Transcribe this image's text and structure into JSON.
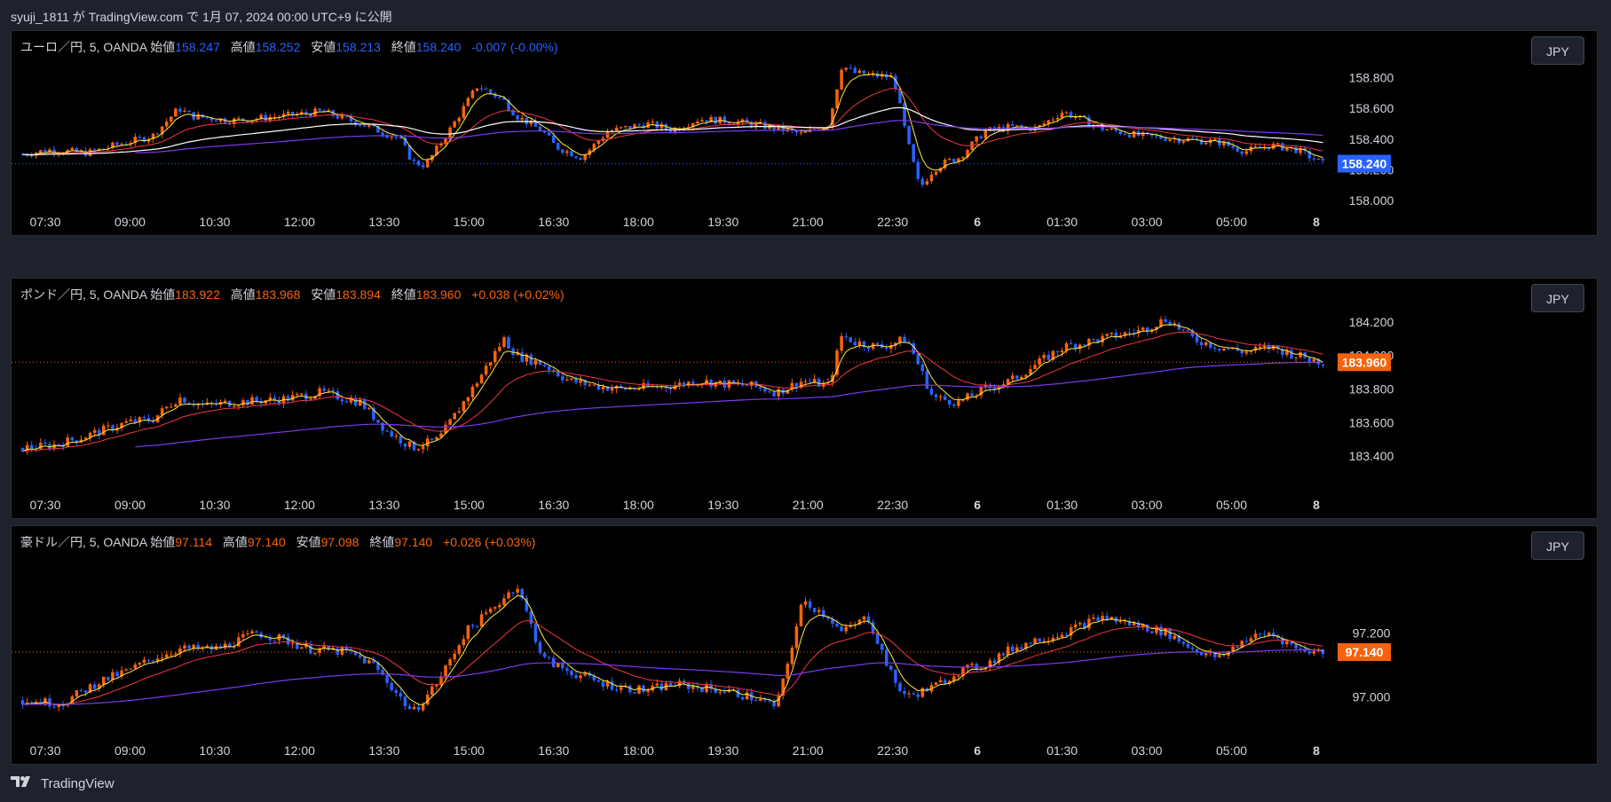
{
  "header": {
    "published": "syuji_1811 が TradingView.com で 1月 07, 2024 00:00 UTC+9 に公開"
  },
  "footer": {
    "brand": "TradingView"
  },
  "time_ticks": [
    "07:30",
    "09:00",
    "10:30",
    "12:00",
    "13:30",
    "15:00",
    "16:30",
    "18:00",
    "19:30",
    "21:00",
    "22:30",
    "6",
    "01:30",
    "03:00",
    "05:00",
    "8"
  ],
  "colors": {
    "up": "#f7620e",
    "down": "#2962ff",
    "ema_fast": "#ffeb3b",
    "ema_mid": "#f23645",
    "ema_slow": "#ffffff",
    "ema_long": "#7c3aed"
  },
  "panes": [
    {
      "symbol": "ユーロ／円, 5, OANDA",
      "open_label": "始値",
      "open": "158.247",
      "high_label": "高値",
      "high": "158.252",
      "low_label": "安値",
      "low": "158.213",
      "close_label": "終値",
      "close": "158.240",
      "change": "-0.007 (-0.00%)",
      "currency": "JPY",
      "price_label": "158.240",
      "value_color": "#2962ff",
      "y_ticks": [
        "158.800",
        "158.600",
        "158.400",
        "158.200",
        "158.000"
      ]
    },
    {
      "symbol": "ポンド／円, 5, OANDA",
      "open_label": "始値",
      "open": "183.922",
      "high_label": "高値",
      "high": "183.968",
      "low_label": "安値",
      "low": "183.894",
      "close_label": "終値",
      "close": "183.960",
      "change": "+0.038 (+0.02%)",
      "currency": "JPY",
      "price_label": "183.960",
      "value_color": "#f7620e",
      "y_ticks": [
        "184.200",
        "184.000",
        "183.800",
        "183.600",
        "183.400"
      ]
    },
    {
      "symbol": "豪ドル／円, 5, OANDA",
      "open_label": "始値",
      "open": "97.114",
      "high_label": "高値",
      "high": "97.140",
      "low_label": "安値",
      "low": "97.098",
      "close_label": "終値",
      "close": "97.140",
      "change": "+0.026 (+0.03%)",
      "currency": "JPY",
      "price_label": "97.140",
      "value_color": "#f7620e",
      "y_ticks": [
        "97.200",
        "97.000"
      ]
    }
  ],
  "chart_data": [
    {
      "type": "candlestick",
      "title": "ユーロ／円, 5, OANDA",
      "x_ticks": [
        "07:30",
        "09:00",
        "10:30",
        "12:00",
        "13:30",
        "15:00",
        "16:30",
        "18:00",
        "19:30",
        "21:00",
        "22:30",
        "6",
        "01:30",
        "03:00",
        "05:00",
        "8"
      ],
      "y_ticks": [
        158.8,
        158.6,
        158.4,
        158.2,
        158.0
      ],
      "ylim": [
        157.96,
        158.93
      ],
      "close_path_x": [
        0,
        0.02,
        0.05,
        0.08,
        0.1,
        0.12,
        0.13,
        0.16,
        0.2,
        0.23,
        0.26,
        0.29,
        0.3,
        0.31,
        0.33,
        0.35,
        0.37,
        0.38,
        0.4,
        0.41,
        0.43,
        0.45,
        0.48,
        0.5,
        0.52,
        0.54,
        0.56,
        0.58,
        0.6,
        0.62,
        0.63,
        0.64,
        0.65,
        0.67,
        0.68,
        0.69,
        0.7,
        0.71,
        0.72,
        0.74,
        0.76,
        0.78,
        0.8,
        0.83,
        0.86,
        0.89,
        0.92,
        0.94,
        0.96,
        0.98,
        1.0
      ],
      "close_path": [
        158.3,
        158.33,
        158.31,
        158.38,
        158.42,
        158.6,
        158.55,
        158.52,
        158.55,
        158.58,
        158.5,
        158.4,
        158.25,
        158.23,
        158.48,
        158.75,
        158.65,
        158.55,
        158.45,
        158.35,
        158.28,
        158.45,
        158.5,
        158.46,
        158.53,
        158.52,
        158.5,
        158.47,
        158.43,
        158.5,
        158.88,
        158.83,
        158.82,
        158.8,
        158.4,
        158.08,
        158.2,
        158.25,
        158.28,
        158.45,
        158.48,
        158.47,
        158.58,
        158.47,
        158.42,
        158.4,
        158.38,
        158.32,
        158.36,
        158.33,
        158.24
      ]
    },
    {
      "type": "candlestick",
      "title": "ポンド／円, 5, OANDA",
      "x_ticks": [
        "07:30",
        "09:00",
        "10:30",
        "12:00",
        "13:30",
        "15:00",
        "16:30",
        "18:00",
        "19:30",
        "21:00",
        "22:30",
        "6",
        "01:30",
        "03:00",
        "05:00",
        "8"
      ],
      "y_ticks": [
        184.2,
        184.0,
        183.8,
        183.6,
        183.4
      ],
      "ylim": [
        183.2,
        184.3
      ],
      "close_path_x": [
        0,
        0.02,
        0.04,
        0.06,
        0.08,
        0.1,
        0.12,
        0.14,
        0.16,
        0.2,
        0.23,
        0.26,
        0.28,
        0.3,
        0.32,
        0.35,
        0.37,
        0.38,
        0.4,
        0.42,
        0.44,
        0.46,
        0.5,
        0.52,
        0.54,
        0.56,
        0.58,
        0.6,
        0.62,
        0.63,
        0.64,
        0.66,
        0.68,
        0.7,
        0.72,
        0.74,
        0.76,
        0.78,
        0.8,
        0.83,
        0.86,
        0.88,
        0.9,
        0.92,
        0.94,
        0.96,
        0.98,
        1.0
      ],
      "close_path": [
        183.45,
        183.46,
        183.5,
        183.55,
        183.6,
        183.62,
        183.75,
        183.7,
        183.72,
        183.74,
        183.78,
        183.72,
        183.55,
        183.45,
        183.5,
        183.85,
        184.1,
        184.0,
        183.95,
        183.85,
        183.82,
        183.8,
        183.82,
        183.85,
        183.83,
        183.82,
        183.78,
        183.85,
        183.82,
        184.12,
        184.08,
        184.05,
        184.1,
        183.75,
        183.72,
        183.8,
        183.85,
        183.95,
        184.05,
        184.1,
        184.15,
        184.22,
        184.1,
        184.05,
        184.02,
        184.05,
        184.0,
        183.96
      ]
    },
    {
      "type": "candlestick",
      "title": "豪ドル／円, 5, OANDA",
      "x_ticks": [
        "07:30",
        "09:00",
        "10:30",
        "12:00",
        "13:30",
        "15:00",
        "16:30",
        "18:00",
        "19:30",
        "21:00",
        "22:30",
        "6",
        "01:30",
        "03:00",
        "05:00",
        "8"
      ],
      "y_ticks": [
        97.2,
        97.0
      ],
      "ylim": [
        96.88,
        97.45
      ],
      "close_path_x": [
        0,
        0.03,
        0.06,
        0.08,
        0.1,
        0.12,
        0.15,
        0.18,
        0.2,
        0.22,
        0.25,
        0.27,
        0.29,
        0.3,
        0.32,
        0.34,
        0.36,
        0.38,
        0.4,
        0.42,
        0.44,
        0.46,
        0.48,
        0.5,
        0.52,
        0.54,
        0.56,
        0.58,
        0.6,
        0.62,
        0.63,
        0.65,
        0.67,
        0.68,
        0.7,
        0.72,
        0.74,
        0.76,
        0.78,
        0.8,
        0.83,
        0.86,
        0.88,
        0.9,
        0.92,
        0.94,
        0.96,
        0.98,
        1.0
      ],
      "close_path": [
        96.99,
        96.98,
        97.05,
        97.08,
        97.12,
        97.15,
        97.15,
        97.2,
        97.18,
        97.15,
        97.14,
        97.1,
        97.0,
        96.95,
        97.05,
        97.2,
        97.27,
        97.35,
        97.12,
        97.08,
        97.05,
        97.03,
        97.02,
        97.04,
        97.03,
        97.02,
        97.0,
        96.97,
        97.3,
        97.25,
        97.2,
        97.25,
        97.05,
        97.0,
        97.03,
        97.08,
        97.1,
        97.15,
        97.18,
        97.2,
        97.25,
        97.22,
        97.2,
        97.15,
        97.12,
        97.18,
        97.2,
        97.15,
        97.14
      ]
    }
  ]
}
